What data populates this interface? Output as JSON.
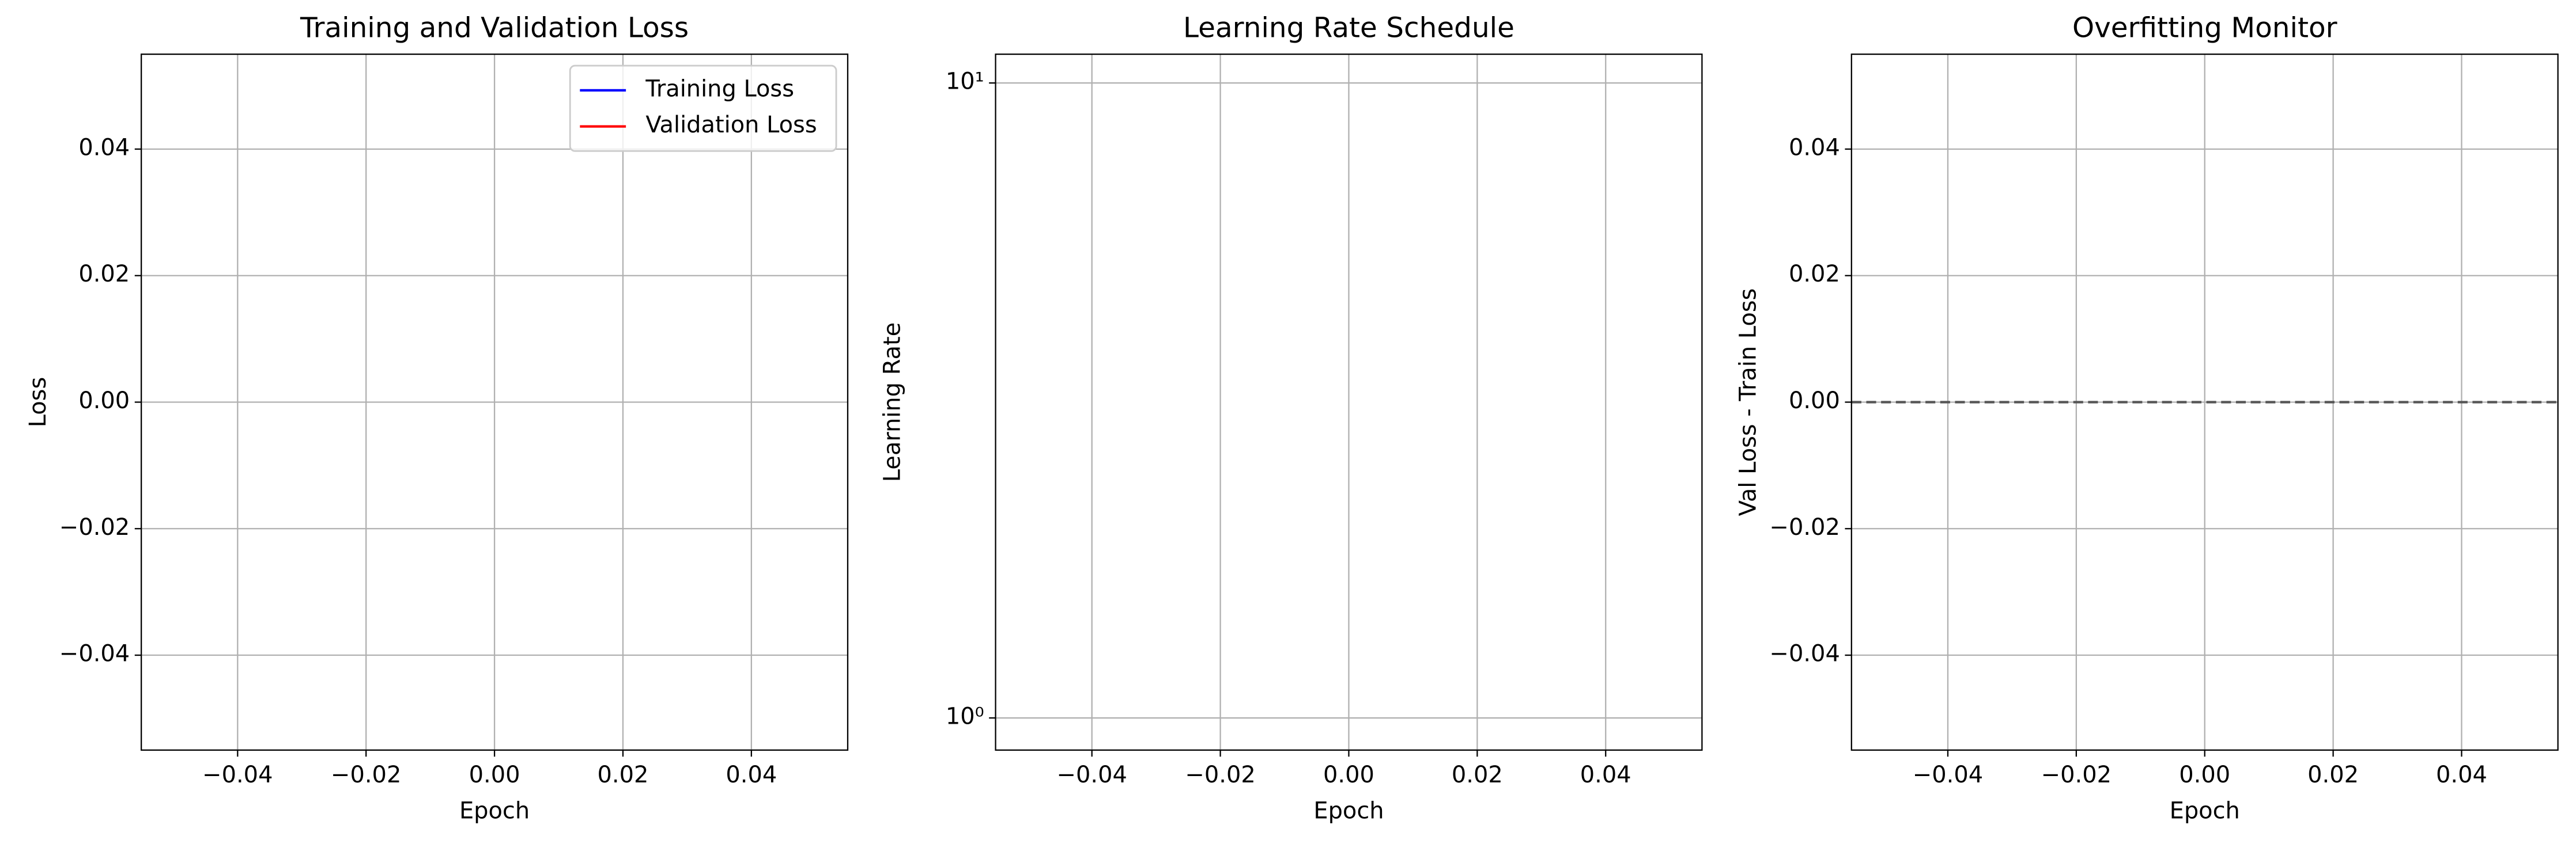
{
  "chart_data": [
    {
      "type": "line",
      "title": "Training and Validation Loss",
      "xlabel": "Epoch",
      "ylabel": "Loss",
      "x": [],
      "series": [
        {
          "name": "Training Loss",
          "color": "#0000ff",
          "values": []
        },
        {
          "name": "Validation Loss",
          "color": "#ff0000",
          "values": []
        }
      ],
      "xlim": [
        -0.055,
        0.055
      ],
      "xticks": [
        {
          "value": -0.04,
          "label": "−0.04"
        },
        {
          "value": -0.02,
          "label": "−0.02"
        },
        {
          "value": 0,
          "label": "0.00"
        },
        0.02,
        0.04
      ],
      "ylim": [
        -0.055,
        0.055
      ],
      "yticks": [
        {
          "value": -0.04,
          "label": "−0.04"
        },
        {
          "value": -0.02,
          "label": "−0.02"
        },
        {
          "value": 0,
          "label": "0.00"
        },
        0.02,
        0.04
      ],
      "grid": true,
      "legend": "upper right"
    },
    {
      "type": "line",
      "title": "Learning Rate Schedule",
      "xlabel": "Epoch",
      "ylabel": "Learning Rate",
      "x": [],
      "values": [],
      "yscale": "log",
      "xlim": [
        -0.055,
        0.055
      ],
      "xticks": [
        {
          "value": -0.04,
          "label": "−0.04"
        },
        {
          "value": -0.02,
          "label": "−0.02"
        },
        {
          "value": 0,
          "label": "0.00"
        },
        0.02,
        0.04
      ],
      "ylim": [
        0.89,
        11.1
      ],
      "yticks": [
        {
          "value": 1,
          "label": "10⁰"
        },
        {
          "value": 10,
          "label": "10¹"
        }
      ],
      "grid": true
    },
    {
      "type": "line",
      "title": "Overfitting Monitor",
      "xlabel": "Epoch",
      "ylabel": "Val Loss - Train Loss",
      "x": [],
      "values": [],
      "xlim": [
        -0.055,
        0.055
      ],
      "xticks": [
        {
          "value": -0.04,
          "label": "−0.04"
        },
        {
          "value": -0.02,
          "label": "−0.02"
        },
        {
          "value": 0,
          "label": "0.00"
        },
        0.02,
        0.04
      ],
      "ylim": [
        -0.055,
        0.055
      ],
      "yticks": [
        {
          "value": -0.04,
          "label": "−0.04"
        },
        {
          "value": -0.02,
          "label": "−0.02"
        },
        {
          "value": 0,
          "label": "0.00"
        },
        0.02,
        0.04
      ],
      "hline": {
        "y": 0,
        "color": "#555555",
        "linestyle": "dashed"
      },
      "grid": true
    }
  ]
}
